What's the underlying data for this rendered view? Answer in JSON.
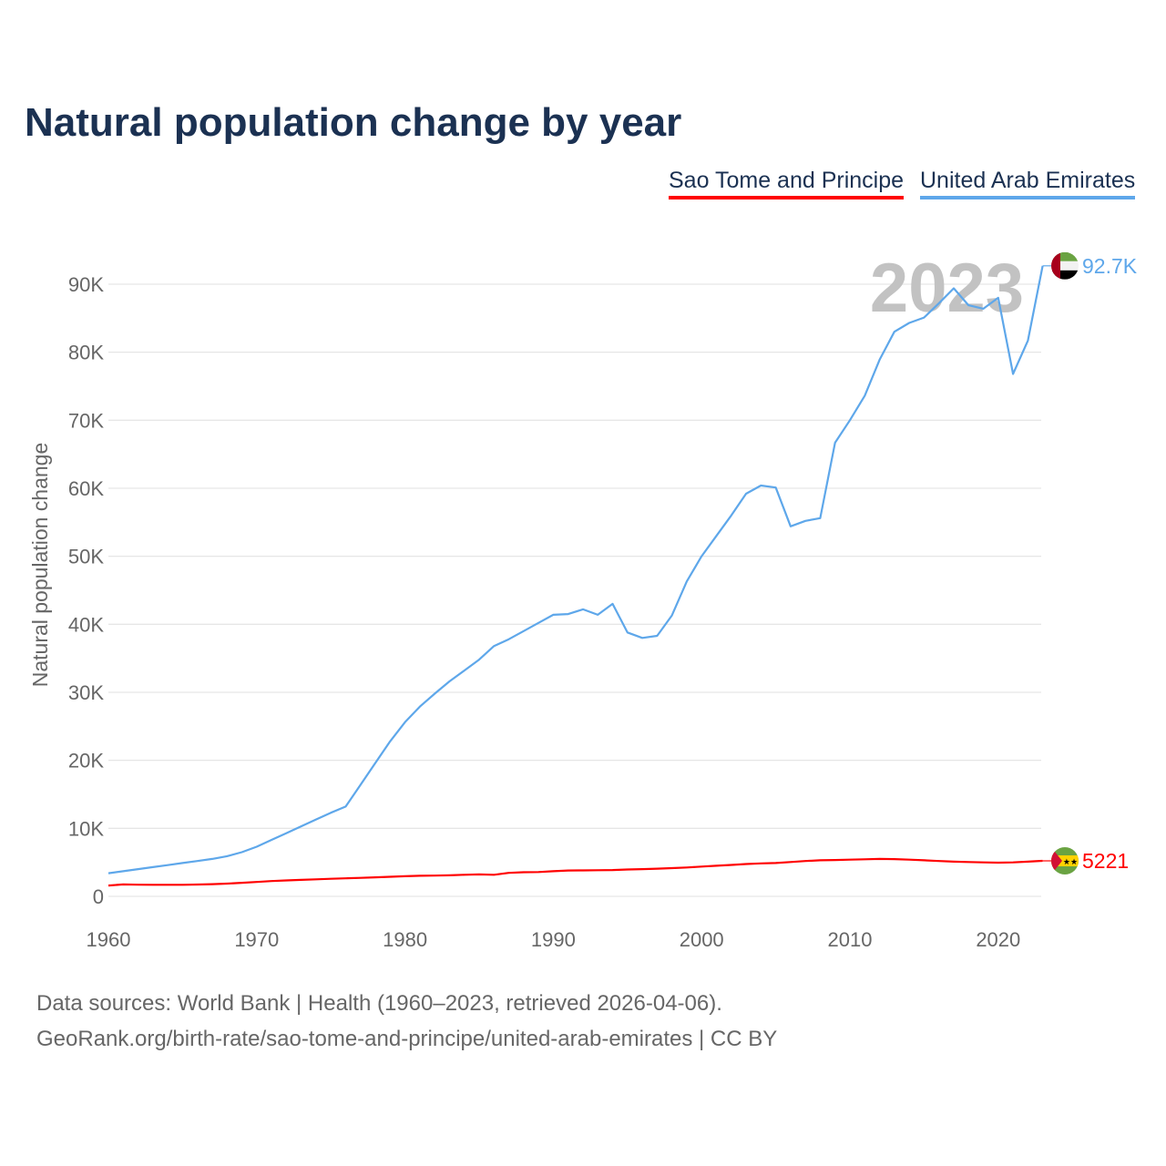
{
  "chart_data": {
    "type": "line",
    "title": "Natural population change by year",
    "xlabel": "",
    "ylabel": "Natural population change",
    "xlim": [
      1960,
      2023
    ],
    "ylim": [
      0,
      92700
    ],
    "x_ticks": [
      1960,
      1970,
      1980,
      1990,
      2000,
      2010,
      2020
    ],
    "x_tick_labels": [
      "1960",
      "1970",
      "1980",
      "1990",
      "2000",
      "2010",
      "2020"
    ],
    "y_ticks": [
      0,
      10000,
      20000,
      30000,
      40000,
      50000,
      60000,
      70000,
      80000,
      90000
    ],
    "y_tick_labels": [
      "0",
      "10K",
      "20K",
      "30K",
      "40K",
      "50K",
      "60K",
      "70K",
      "80K",
      "90K"
    ],
    "grid": true,
    "legend_position": "top-right",
    "year_label": "2023",
    "x": [
      1960,
      1961,
      1962,
      1963,
      1964,
      1965,
      1966,
      1967,
      1968,
      1969,
      1970,
      1971,
      1972,
      1973,
      1974,
      1975,
      1976,
      1977,
      1978,
      1979,
      1980,
      1981,
      1982,
      1983,
      1984,
      1985,
      1986,
      1987,
      1988,
      1989,
      1990,
      1991,
      1992,
      1993,
      1994,
      1995,
      1996,
      1997,
      1998,
      1999,
      2000,
      2001,
      2002,
      2003,
      2004,
      2005,
      2006,
      2007,
      2008,
      2009,
      2010,
      2011,
      2012,
      2013,
      2014,
      2015,
      2016,
      2017,
      2018,
      2019,
      2020,
      2021,
      2022,
      2023
    ],
    "series": [
      {
        "name": "Sao Tome and Principe",
        "color": "#ff0000",
        "end_label": "5221",
        "flag": "sao-tome-flag",
        "values": [
          1600,
          1750,
          1720,
          1700,
          1700,
          1700,
          1740,
          1800,
          1880,
          2000,
          2120,
          2250,
          2350,
          2430,
          2500,
          2580,
          2650,
          2720,
          2800,
          2880,
          2960,
          3020,
          3050,
          3100,
          3170,
          3230,
          3180,
          3450,
          3550,
          3580,
          3700,
          3800,
          3820,
          3850,
          3870,
          3950,
          4000,
          4070,
          4150,
          4250,
          4380,
          4500,
          4620,
          4750,
          4850,
          4900,
          5050,
          5200,
          5300,
          5350,
          5400,
          5450,
          5500,
          5480,
          5400,
          5300,
          5200,
          5100,
          5050,
          5000,
          4950,
          5000,
          5100,
          5221
        ]
      },
      {
        "name": "United Arab Emirates",
        "color": "#5ea7ea",
        "end_label": "92.7K",
        "flag": "uae-flag",
        "values": [
          3400,
          3700,
          4000,
          4300,
          4600,
          4900,
          5200,
          5500,
          5900,
          6500,
          7300,
          8300,
          9300,
          10300,
          11300,
          12300,
          13200,
          16400,
          19600,
          22800,
          25600,
          27900,
          29800,
          31600,
          33200,
          34800,
          36800,
          37800,
          39000,
          40200,
          41400,
          41500,
          42200,
          41400,
          43000,
          38800,
          38000,
          38300,
          41300,
          46300,
          50000,
          53000,
          56000,
          59200,
          60400,
          60100,
          54400,
          55200,
          55600,
          66700,
          70000,
          73600,
          78900,
          83000,
          84300,
          85100,
          87200,
          89400,
          86900,
          86400,
          88000,
          76800,
          81700,
          92700
        ]
      }
    ]
  },
  "footer": {
    "line1": "Data sources: World Bank | Health (1960–2023, retrieved 2026-04-06).",
    "line2": "GeoRank.org/birth-rate/sao-tome-and-principe/united-arab-emirates | CC BY"
  }
}
